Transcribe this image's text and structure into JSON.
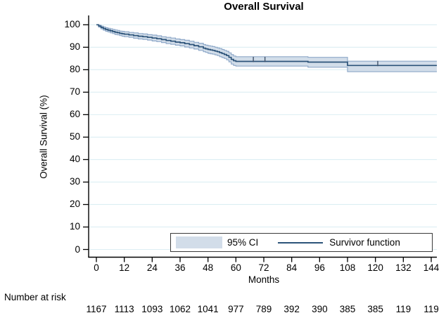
{
  "figure": {
    "title": "Overall Survival",
    "y_axis_label": "Overall Survival (%)",
    "x_axis_label": "Months",
    "legend": {
      "ci_label": "95% CI",
      "survivor_label": "Survivor function"
    },
    "risk_header": "Number at risk"
  },
  "colors": {
    "survivor_line": "#2c5379",
    "ci_band_fill": "#d2dde9",
    "ci_band_edge": "#8fa9c9",
    "gridline": "#dceef3",
    "axis": "#000000",
    "legend_border": "#3a3a3a"
  },
  "chart_data": {
    "type": "line",
    "subtype": "kaplan-meier-step-with-ci-band",
    "title": "Overall Survival",
    "xlabel": "Months",
    "ylabel": "Overall Survival (%)",
    "xlim": [
      0,
      144
    ],
    "ylim": [
      0,
      100
    ],
    "x_ticks": [
      0,
      12,
      24,
      36,
      48,
      60,
      72,
      84,
      96,
      108,
      120,
      132,
      144
    ],
    "y_ticks": [
      0,
      10,
      20,
      30,
      40,
      50,
      60,
      70,
      80,
      90,
      100
    ],
    "grid": true,
    "legend_position": "bottom-right-inside",
    "legend_entries": [
      "95% CI",
      "Survivor function"
    ],
    "km_points_note": "columns: [month, survival_pct, ci_upper_pct, ci_lower_pct]",
    "km_points": [
      [
        0,
        100,
        100,
        100
      ],
      [
        1,
        99.4,
        99.8,
        98.9
      ],
      [
        2,
        98.8,
        99.4,
        98.2
      ],
      [
        3,
        98.3,
        99.0,
        97.6
      ],
      [
        4,
        97.9,
        98.7,
        97.1
      ],
      [
        5,
        97.6,
        98.4,
        96.8
      ],
      [
        6,
        97.3,
        98.2,
        96.4
      ],
      [
        7,
        97.0,
        97.9,
        96.1
      ],
      [
        8,
        96.7,
        97.7,
        95.7
      ],
      [
        9,
        96.5,
        97.5,
        95.5
      ],
      [
        10,
        96.2,
        97.2,
        95.2
      ],
      [
        11,
        96.0,
        97.1,
        94.9
      ],
      [
        12,
        95.8,
        96.9,
        94.7
      ],
      [
        14,
        95.5,
        96.6,
        94.4
      ],
      [
        16,
        95.2,
        96.4,
        94.0
      ],
      [
        18,
        94.9,
        96.1,
        93.7
      ],
      [
        20,
        94.7,
        95.9,
        93.5
      ],
      [
        22,
        94.4,
        95.6,
        93.2
      ],
      [
        24,
        94.1,
        95.4,
        92.8
      ],
      [
        26,
        93.8,
        95.1,
        92.5
      ],
      [
        28,
        93.4,
        94.7,
        92.1
      ],
      [
        30,
        93.0,
        94.4,
        91.6
      ],
      [
        32,
        92.7,
        94.1,
        91.3
      ],
      [
        34,
        92.3,
        93.7,
        90.9
      ],
      [
        36,
        92.0,
        93.4,
        90.6
      ],
      [
        38,
        91.6,
        93.1,
        90.1
      ],
      [
        40,
        91.2,
        92.7,
        89.7
      ],
      [
        42,
        90.7,
        92.2,
        89.2
      ],
      [
        44,
        90.2,
        91.8,
        88.6
      ],
      [
        46,
        89.6,
        91.2,
        88.0
      ],
      [
        47,
        89.3,
        90.9,
        87.7
      ],
      [
        48,
        89.0,
        90.7,
        87.3
      ],
      [
        49,
        88.8,
        90.5,
        87.1
      ],
      [
        50,
        88.6,
        90.3,
        86.9
      ],
      [
        51,
        88.3,
        90.0,
        86.6
      ],
      [
        52,
        88.0,
        89.7,
        86.3
      ],
      [
        53,
        87.6,
        89.4,
        85.8
      ],
      [
        54,
        87.2,
        89.0,
        85.4
      ],
      [
        55,
        86.8,
        88.6,
        85.0
      ],
      [
        56,
        86.3,
        88.2,
        84.4
      ],
      [
        57,
        85.5,
        87.5,
        83.5
      ],
      [
        58,
        84.6,
        86.7,
        82.5
      ],
      [
        59,
        84.0,
        86.1,
        81.9
      ],
      [
        60,
        83.7,
        85.8,
        81.6
      ],
      [
        91,
        83.4,
        85.5,
        81.1
      ],
      [
        108,
        81.9,
        83.8,
        79.1
      ],
      [
        144,
        81.9,
        83.8,
        79.1
      ]
    ],
    "censor_marks_note": "columns: [month, survival_pct]",
    "censor_marks": [
      [
        67.5,
        83.7
      ],
      [
        72.5,
        83.7
      ],
      [
        121,
        81.9
      ]
    ],
    "number_at_risk": {
      "label": "Number at risk",
      "months": [
        0,
        12,
        24,
        36,
        48,
        60,
        72,
        84,
        96,
        108,
        120,
        132,
        144
      ],
      "values": [
        "1167",
        "1113",
        "1093",
        "1062",
        "1041",
        "977",
        "789",
        "392",
        "390",
        "385",
        "385",
        "119",
        "119"
      ]
    }
  }
}
